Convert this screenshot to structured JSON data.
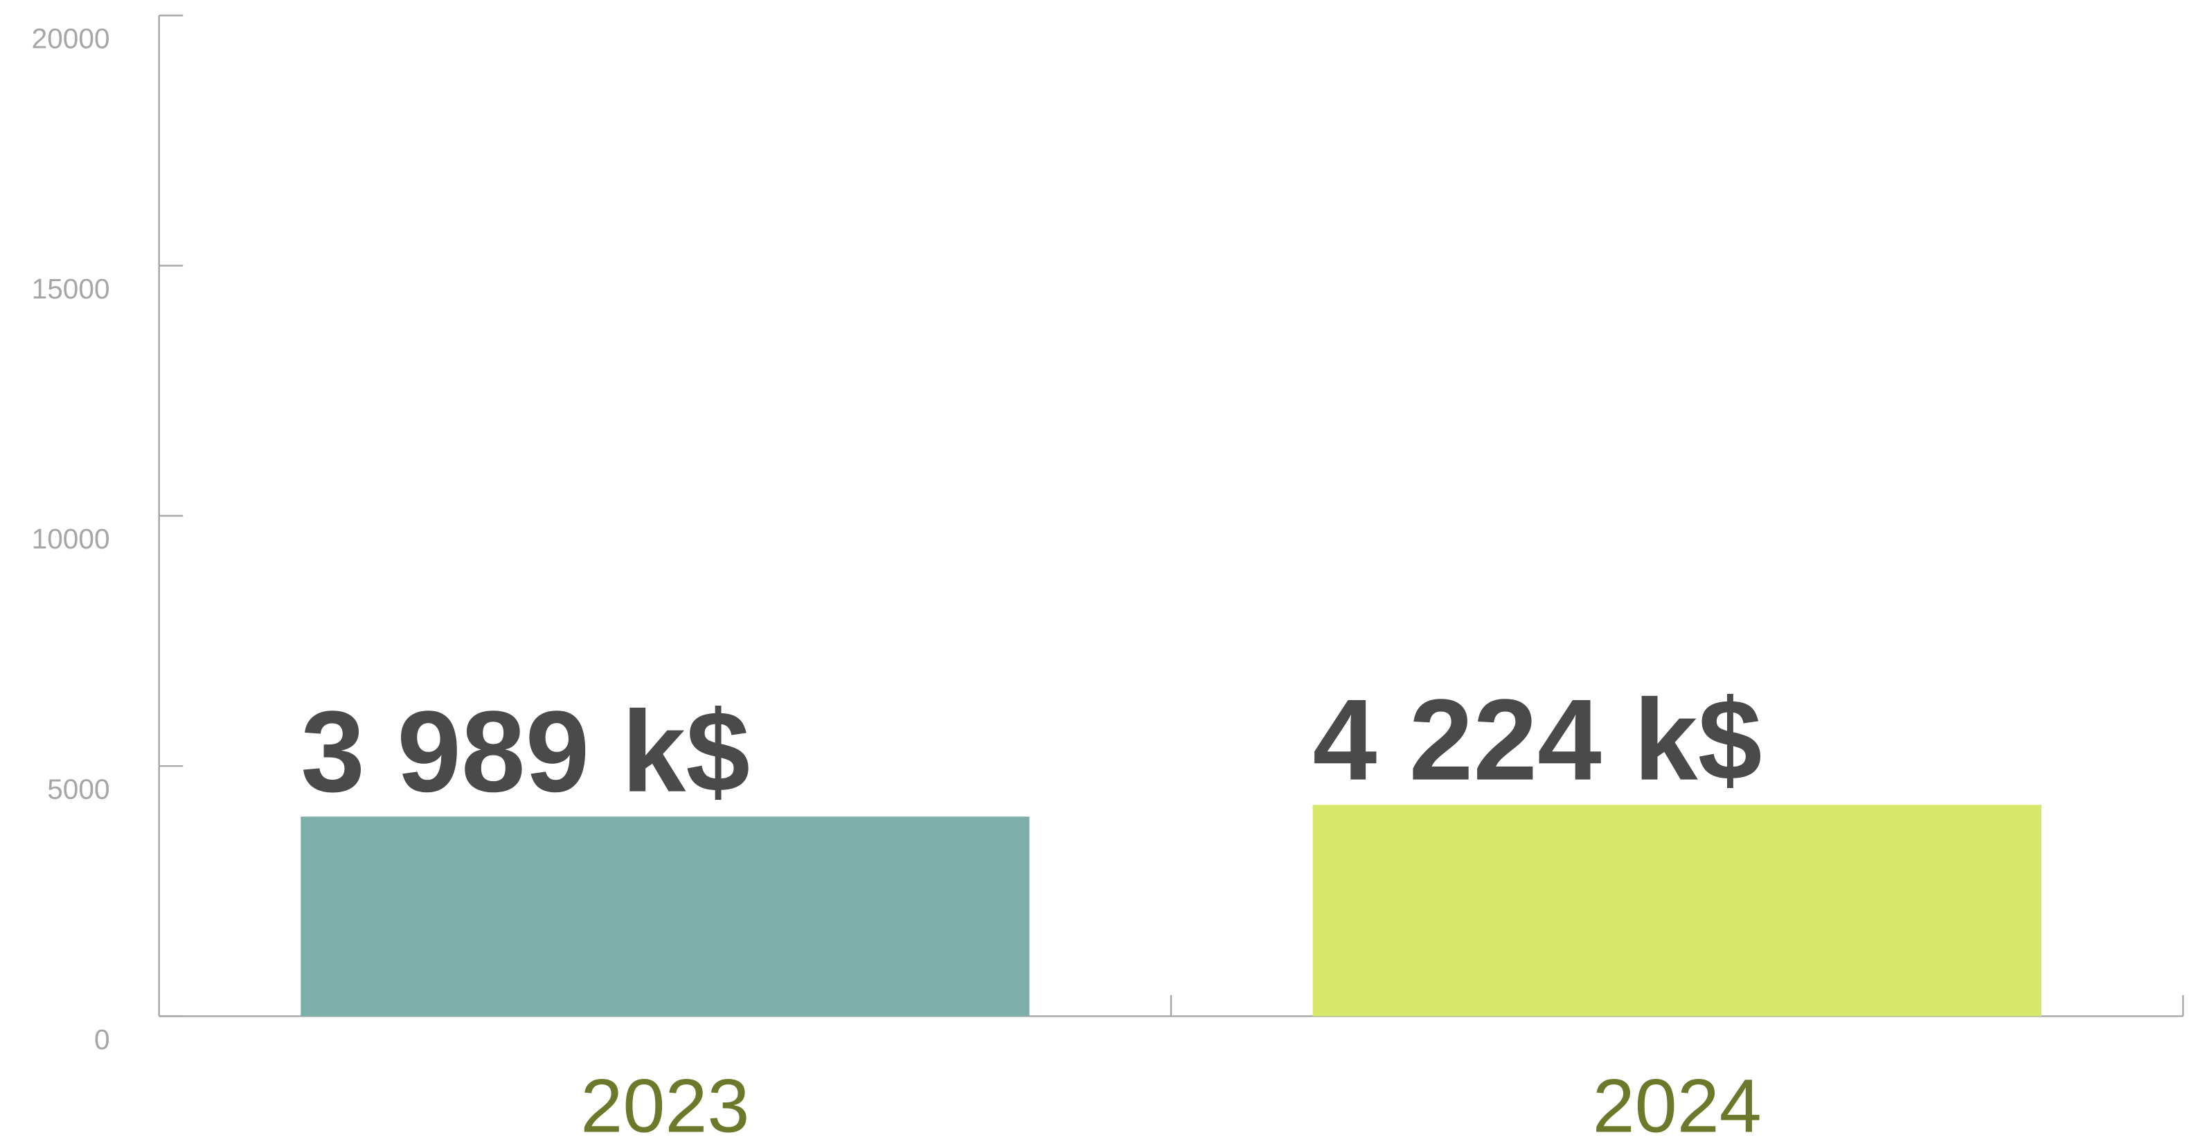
{
  "chart_data": {
    "type": "bar",
    "categories": [
      "2023",
      "2024"
    ],
    "values": [
      3989,
      4224
    ],
    "value_labels": [
      "3 989 k$",
      "4 224 k$"
    ],
    "colors": [
      "#7eaeaa",
      "#d6e76a"
    ],
    "ylim": [
      0,
      20000
    ],
    "yticks": [
      0,
      5000,
      10000,
      15000,
      20000
    ]
  }
}
